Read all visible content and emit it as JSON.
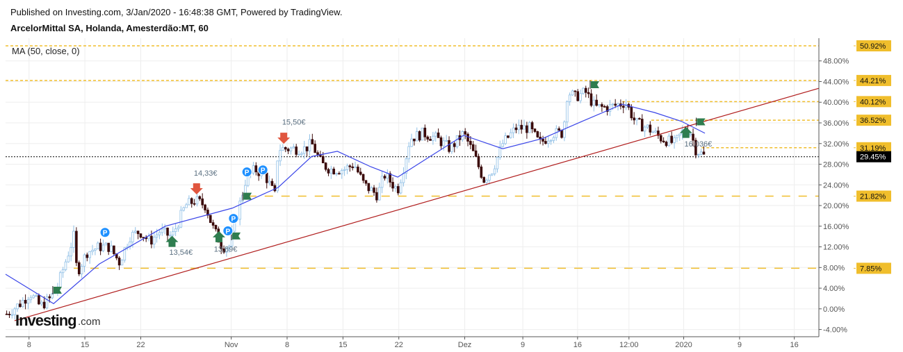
{
  "header": {
    "published": "Published on Investing.com, 3/Jan/2020 - 16:48:38 GMT, Powered by TradingView.",
    "title": "ArcelorMittal SA, Holanda, Amesterdão:MT, 60",
    "indicator": "MA (50, close, 0)"
  },
  "logo": {
    "text": "Investing",
    "suffix": ".com"
  },
  "chart_data": {
    "type": "candlestick",
    "x_unit": "trading-day index (0 = 8 Oct 2019)",
    "xlim": [
      -2.1,
      70.7
    ],
    "ylim": [
      -5.4,
      52.4
    ],
    "x_ticks": [
      {
        "x": 0,
        "label": "8"
      },
      {
        "x": 5,
        "label": "15"
      },
      {
        "x": 10,
        "label": "22"
      },
      {
        "x": 18.1,
        "label": "Nov"
      },
      {
        "x": 23.1,
        "label": "8"
      },
      {
        "x": 28.1,
        "label": "15"
      },
      {
        "x": 33.1,
        "label": "22"
      },
      {
        "x": 39,
        "label": "Dez"
      },
      {
        "x": 44.2,
        "label": "9"
      },
      {
        "x": 49.1,
        "label": "16"
      },
      {
        "x": 53.7,
        "label": "12:00"
      },
      {
        "x": 58.6,
        "label": "2020"
      },
      {
        "x": 63.6,
        "label": "9"
      },
      {
        "x": 68.5,
        "label": "16"
      }
    ],
    "y_ticks": [
      -4,
      0,
      4,
      8,
      12,
      16,
      20,
      24,
      28,
      32,
      36,
      40,
      44,
      48
    ],
    "price_path": [
      [
        -2,
        -1
      ],
      [
        -0.8,
        1
      ],
      [
        0.1,
        3
      ],
      [
        1,
        0.5
      ],
      [
        1.9,
        2
      ],
      [
        2.5,
        4
      ],
      [
        3.4,
        10
      ],
      [
        4,
        14
      ],
      [
        4.3,
        7
      ],
      [
        5.2,
        11
      ],
      [
        6.3,
        12
      ],
      [
        7.2,
        12
      ],
      [
        8.1,
        9
      ],
      [
        9,
        14
      ],
      [
        9.9,
        15
      ],
      [
        10.8,
        13
      ],
      [
        11.7,
        15
      ],
      [
        12.8,
        14
      ],
      [
        14,
        20
      ],
      [
        14.9,
        21
      ],
      [
        15.8,
        20
      ],
      [
        16.4,
        16
      ],
      [
        17.3,
        12
      ],
      [
        17.9,
        12
      ],
      [
        18.5,
        17
      ],
      [
        19.4,
        25
      ],
      [
        20.2,
        27
      ],
      [
        21.1,
        26
      ],
      [
        22,
        22
      ],
      [
        22.3,
        31
      ],
      [
        23.5,
        31
      ],
      [
        24.7,
        31
      ],
      [
        25.3,
        32
      ],
      [
        26.2,
        28
      ],
      [
        27,
        27
      ],
      [
        28.2,
        27
      ],
      [
        29.1,
        28
      ],
      [
        30,
        24
      ],
      [
        31.2,
        22
      ],
      [
        31.8,
        26
      ],
      [
        33,
        23
      ],
      [
        33.6,
        28
      ],
      [
        34.1,
        33
      ],
      [
        35.3,
        34
      ],
      [
        36.5,
        33
      ],
      [
        37.7,
        31
      ],
      [
        38.9,
        34
      ],
      [
        39.8,
        30
      ],
      [
        40.7,
        25
      ],
      [
        41.5,
        27
      ],
      [
        42.4,
        32
      ],
      [
        43.6,
        35
      ],
      [
        44.8,
        35
      ],
      [
        45.7,
        32
      ],
      [
        46.9,
        34
      ],
      [
        47.8,
        34
      ],
      [
        48.2,
        42
      ],
      [
        48.9,
        41
      ],
      [
        49.8,
        42
      ],
      [
        50.7,
        39
      ],
      [
        51.9,
        39
      ],
      [
        53.4,
        40
      ],
      [
        54.3,
        36
      ],
      [
        55.4,
        35
      ],
      [
        56.6,
        33
      ],
      [
        57.8,
        32
      ],
      [
        58.7,
        35
      ],
      [
        59.3,
        34
      ],
      [
        59.6,
        31
      ],
      [
        60.5,
        29.45
      ]
    ],
    "series": [
      {
        "name": "MA (50, close, 0)",
        "color": "#3a45e8",
        "points": [
          [
            -2.1,
            6.7
          ],
          [
            2.2,
            1
          ],
          [
            6.3,
            8.7
          ],
          [
            12.2,
            16
          ],
          [
            18.2,
            19.5
          ],
          [
            22.3,
            23.5
          ],
          [
            25.3,
            29.5
          ],
          [
            27.6,
            30.5
          ],
          [
            30.6,
            27.5
          ],
          [
            33,
            25.5
          ],
          [
            35.9,
            29.5
          ],
          [
            38.9,
            33.6
          ],
          [
            42.4,
            31
          ],
          [
            46,
            33
          ],
          [
            49.5,
            36.3
          ],
          [
            53.1,
            39.6
          ],
          [
            56,
            38
          ],
          [
            58.4,
            36.3
          ],
          [
            60.5,
            34
          ]
        ]
      },
      {
        "name": "trend line",
        "color": "#b01c1c",
        "points": [
          [
            -1.3,
            -2.3
          ],
          [
            70.7,
            42.7
          ]
        ]
      }
    ],
    "levels": [
      {
        "value": 50.92,
        "label": "50.92%",
        "from": -2.1,
        "style": "dotted"
      },
      {
        "value": 44.21,
        "label": "44.21%",
        "from": -2.1,
        "style": "dotted"
      },
      {
        "value": 40.12,
        "label": "40.12%",
        "from": 53.1,
        "style": "dotted"
      },
      {
        "value": 36.52,
        "label": "36.52%",
        "from": 55.7,
        "style": "dotted"
      },
      {
        "value": 31.19,
        "label": "31.19%",
        "from": 60.2,
        "style": "dotted"
      },
      {
        "value": 21.82,
        "label": "21.82%",
        "from": 19.6,
        "style": "dashed"
      },
      {
        "value": 7.85,
        "label": "7.85%",
        "from": 4.0,
        "style": "dashed"
      }
    ],
    "current": {
      "value": 29.45,
      "label": "29.45%"
    },
    "annotations": [
      {
        "x": 23.7,
        "y": 36.2,
        "text": "15,50€"
      },
      {
        "x": 15.8,
        "y": 26.3,
        "text": "14,33€"
      },
      {
        "x": 13.6,
        "y": 11.0,
        "text": "13,54€"
      },
      {
        "x": 17.6,
        "y": 11.6,
        "text": "13,89€"
      },
      {
        "x": 59.9,
        "y": 32.0,
        "text": "16,036€"
      }
    ],
    "markers": {
      "sell": [
        [
          22.8,
          32.9
        ],
        [
          15.0,
          23.1
        ]
      ],
      "buy": [
        [
          12.8,
          13.2
        ],
        [
          17.0,
          14.1
        ],
        [
          58.8,
          34.3
        ]
      ],
      "flag": [
        [
          2.5,
          3.6
        ],
        [
          18.5,
          14.1
        ],
        [
          19.5,
          21.8
        ],
        [
          50.6,
          43.4
        ],
        [
          60.1,
          36.2
        ]
      ],
      "p": [
        [
          6.8,
          14.8
        ],
        [
          17.8,
          15.1
        ],
        [
          18.3,
          17.5
        ],
        [
          19.5,
          26.5
        ],
        [
          20,
          26.9
        ]
      ],
      "p_label": "P"
    },
    "colors": {
      "up": "#8fbfe6",
      "down": "#3b0a0a",
      "level": "#f0be2c",
      "grid": "#eeeeee"
    }
  }
}
